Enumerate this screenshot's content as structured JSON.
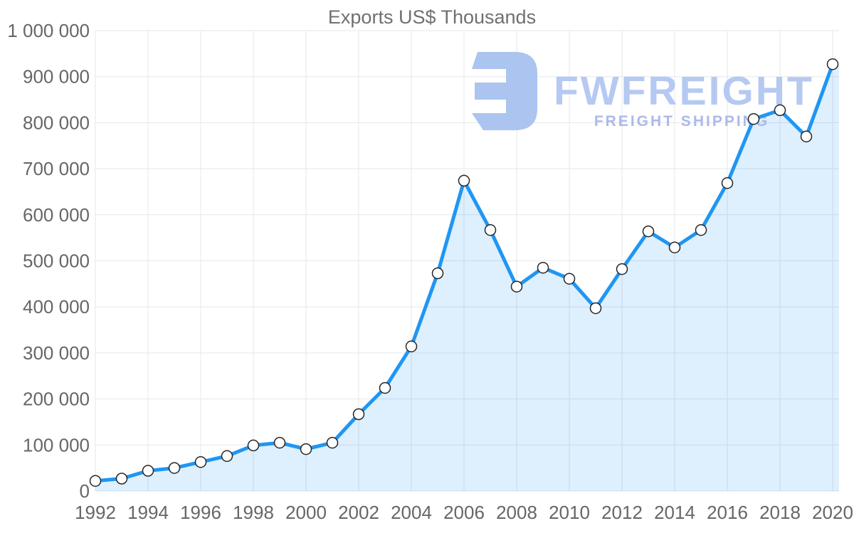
{
  "watermark": {
    "brand": "FWFREIGHT",
    "tagline": "FREIGHT SHIPPING",
    "mark_color": "#A6C1EF",
    "brand_color": "#B5C9F2",
    "tagline_color": "#ACB9EA"
  },
  "chart_data": {
    "type": "line",
    "title": "Exports US$ Thousands",
    "xlabel": "",
    "ylabel": "",
    "x": [
      1992,
      1993,
      1994,
      1995,
      1996,
      1997,
      1998,
      1999,
      2000,
      2001,
      2002,
      2003,
      2004,
      2005,
      2006,
      2007,
      2008,
      2009,
      2010,
      2011,
      2012,
      2013,
      2014,
      2015,
      2016,
      2017,
      2018,
      2019,
      2020
    ],
    "series": [
      {
        "name": "Exports US$ Thousands",
        "values": [
          22000,
          27000,
          44000,
          50000,
          63000,
          76000,
          99000,
          105000,
          91000,
          105000,
          167000,
          224000,
          314000,
          473000,
          674000,
          567000,
          444000,
          485000,
          461000,
          397000,
          482000,
          564000,
          529000,
          567000,
          669000,
          808000,
          827000,
          770000,
          927000
        ]
      }
    ],
    "ylim": [
      0,
      1000000
    ],
    "ytick_step": 100000,
    "ytick_labels": [
      "0",
      "100 000",
      "200 000",
      "300 000",
      "400 000",
      "500 000",
      "600 000",
      "700 000",
      "800 000",
      "900 000",
      "1 000 000"
    ],
    "xtick_every": 2,
    "xtick_labels": [
      "1992",
      "1994",
      "1996",
      "1998",
      "2000",
      "2002",
      "2004",
      "2006",
      "2008",
      "2010",
      "2012",
      "2014",
      "2016",
      "2018",
      "2020"
    ],
    "grid": true,
    "legend": "none",
    "line_color": "#2096F3",
    "fill_color": "rgba(32, 150, 243, 0.15)",
    "grid_color": "#E4E7EA",
    "label_color": "#666666",
    "title_color": "#707070",
    "marker_fill": "#FFFFFF",
    "marker_stroke": "#262626"
  }
}
